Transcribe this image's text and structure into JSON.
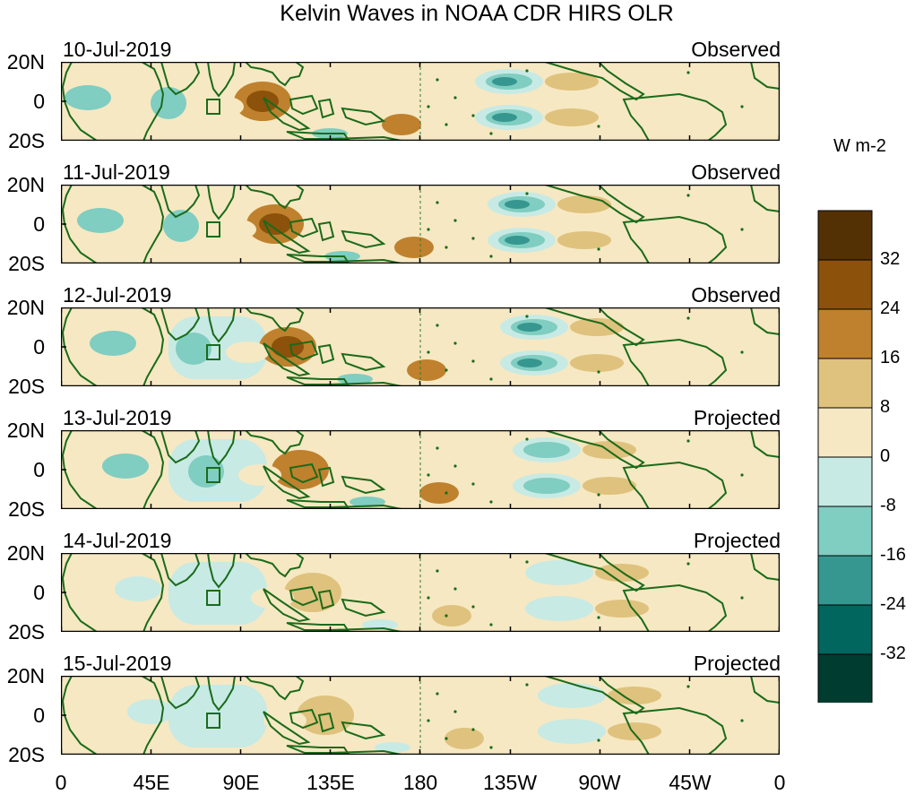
{
  "title": "Kelvin Waves in NOAA CDR HIRS OLR",
  "panels": [
    {
      "date": "10-Jul-2019",
      "status": "Observed"
    },
    {
      "date": "11-Jul-2019",
      "status": "Observed"
    },
    {
      "date": "12-Jul-2019",
      "status": "Observed"
    },
    {
      "date": "13-Jul-2019",
      "status": "Projected"
    },
    {
      "date": "14-Jul-2019",
      "status": "Projected"
    },
    {
      "date": "15-Jul-2019",
      "status": "Projected"
    }
  ],
  "y_axis": {
    "top": "20N",
    "mid": "0",
    "bottom": "20S"
  },
  "x_axis": [
    "0",
    "45E",
    "90E",
    "135E",
    "180",
    "135W",
    "90W",
    "45W",
    "0"
  ],
  "colorbar": {
    "units": "W m-2",
    "labels": [
      "32",
      "24",
      "16",
      "8",
      "0",
      "-8",
      "-16",
      "-24",
      "-32"
    ],
    "colors": [
      "#543005",
      "#8c510a",
      "#bf812d",
      "#dfc27d",
      "#f6e8c3",
      "#c7eae5",
      "#80cdc1",
      "#35978f",
      "#01665e",
      "#003c30"
    ]
  },
  "colors": {
    "land": "#1a6b1a",
    "dateline": "#2e7d32"
  }
}
